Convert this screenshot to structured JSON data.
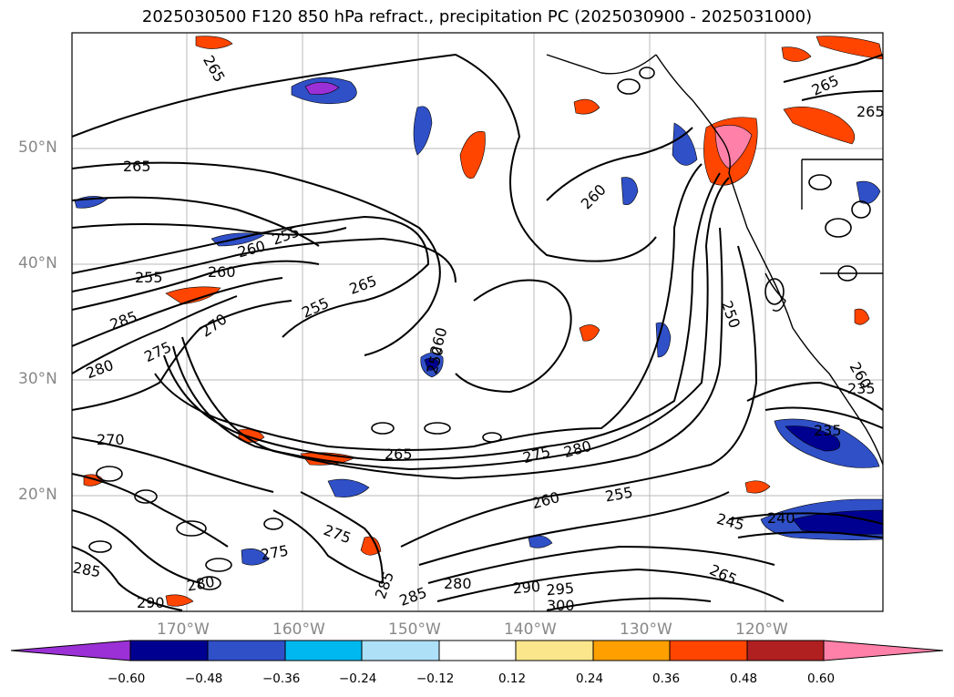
{
  "title": "2025030500 F120 850 hPa refract., precipitation PC (2025030900 - 2025031000)",
  "lat_labels": [
    "50°N",
    "40°N",
    "30°N",
    "20°N"
  ],
  "lon_labels": [
    "170°W",
    "160°W",
    "150°W",
    "140°W",
    "130°W",
    "120°W"
  ],
  "contour_labels": [
    "265",
    "265",
    "265",
    "265",
    "260",
    "255",
    "260",
    "255",
    "265",
    "255",
    "250",
    "285",
    "270",
    "275",
    "280",
    "250",
    "260",
    "260",
    "270",
    "265",
    "275",
    "280",
    "260",
    "255",
    "245",
    "240",
    "235",
    "265",
    "275",
    "280",
    "285",
    "285",
    "290",
    "295",
    "300",
    "290",
    "280",
    "285",
    "275",
    "235",
    "260"
  ],
  "colorbar": {
    "tick_labels": [
      "−0.60",
      "−0.48",
      "−0.36",
      "−0.24",
      "−0.12",
      "0.12",
      "0.24",
      "0.36",
      "0.48",
      "0.60"
    ],
    "colors": [
      "#9b30d6",
      "#000090",
      "#3050c8",
      "#00b8f0",
      "#aee0f8",
      "#ffffff",
      "#fce68c",
      "#ffa000",
      "#ff4500",
      "#b02020",
      "#ff80a8"
    ]
  }
}
